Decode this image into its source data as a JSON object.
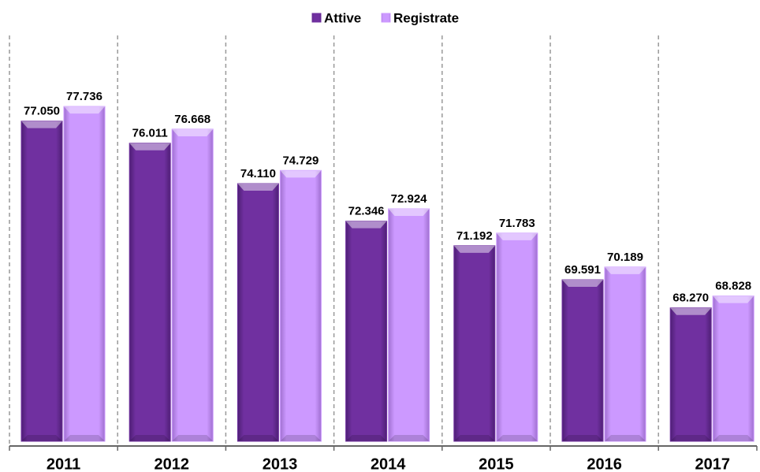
{
  "chart_data": {
    "type": "bar",
    "categories": [
      "2011",
      "2012",
      "2013",
      "2014",
      "2015",
      "2016",
      "2017"
    ],
    "series": [
      {
        "name": "Attive",
        "color": "#7030a0",
        "values": [
          77050,
          76011,
          74110,
          72346,
          71192,
          69591,
          68270
        ],
        "value_labels": [
          "77.050",
          "76.011",
          "74.110",
          "72.346",
          "71.192",
          "69.591",
          "68.270"
        ]
      },
      {
        "name": "Registrate",
        "color": "#cc99ff",
        "values": [
          77736,
          76668,
          74729,
          72924,
          71783,
          70189,
          68828
        ],
        "value_labels": [
          "77.736",
          "76.668",
          "74.729",
          "72.924",
          "71.783",
          "70.189",
          "68.828"
        ]
      }
    ],
    "ylim": [
      62000,
      80000
    ],
    "legend": "top"
  }
}
